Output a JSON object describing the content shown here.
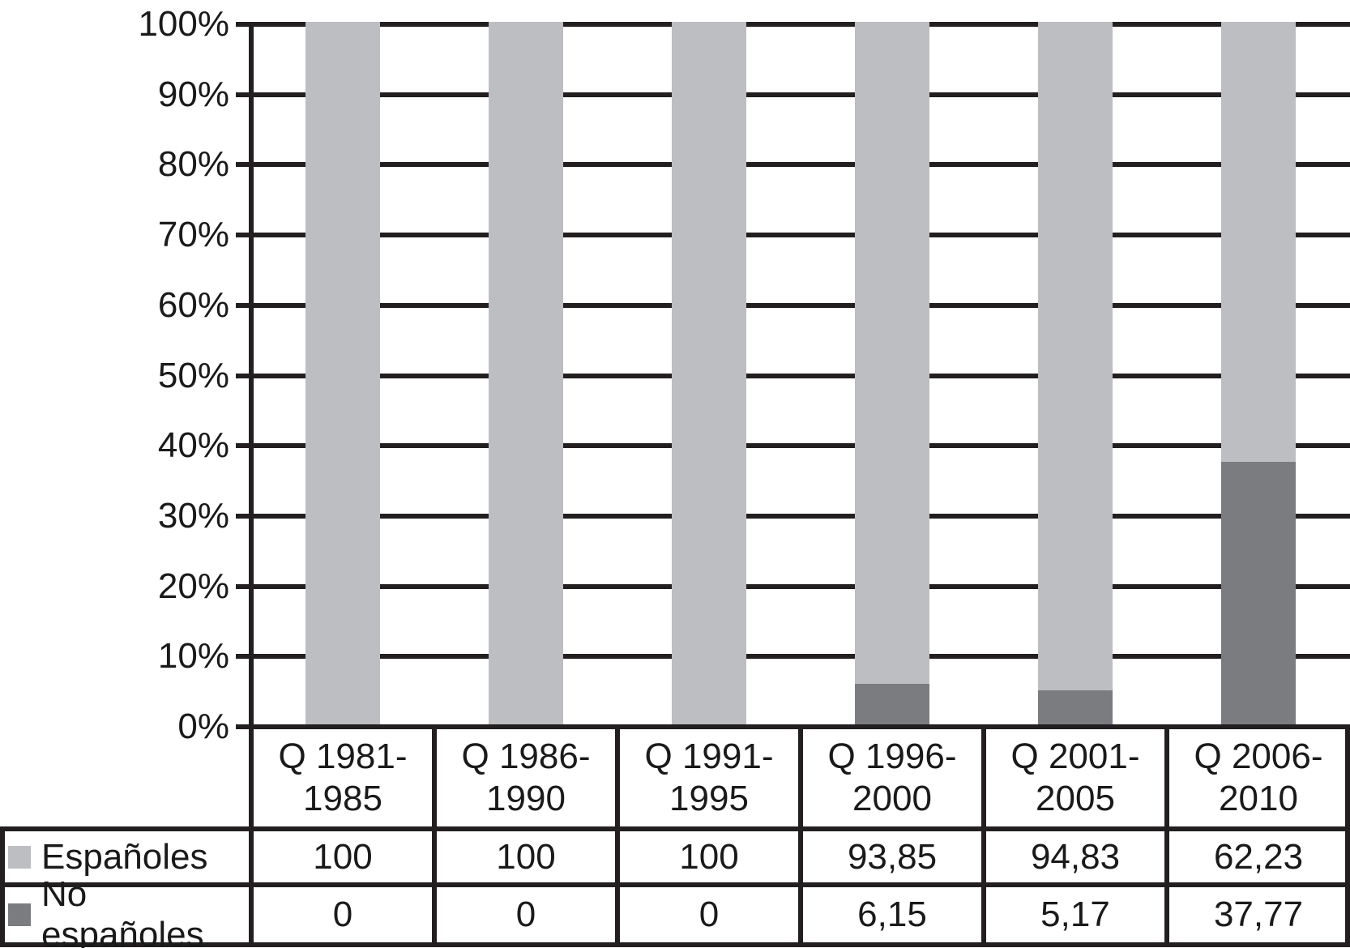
{
  "chart_data": {
    "type": "bar",
    "subtype": "stacked-100-percent-column",
    "title": "",
    "xlabel": "",
    "ylabel": "",
    "categories": [
      "Q 1981-\n1985",
      "Q 1986-\n1990",
      "Q 1991-\n1995",
      "Q 1996-\n2000",
      "Q 2001-\n2005",
      "Q 2006-\n2010"
    ],
    "series": [
      {
        "name": "Españoles",
        "values": [
          100,
          100,
          100,
          93.85,
          94.83,
          62.23
        ],
        "display_values": [
          "100",
          "100",
          "100",
          "93,85",
          "94,83",
          "62,23"
        ],
        "color": "#bdbec2"
      },
      {
        "name": "No españoles",
        "values": [
          0,
          0,
          0,
          6.15,
          5.17,
          37.77
        ],
        "display_values": [
          "0",
          "0",
          "0",
          "6,15",
          "5,17",
          "37,77"
        ],
        "color": "#7b7c80"
      }
    ],
    "y_axis": {
      "ticks": [
        "0%",
        "10%",
        "20%",
        "30%",
        "40%",
        "50%",
        "60%",
        "70%",
        "80%",
        "90%",
        "100%"
      ],
      "min": 0,
      "max": 100,
      "grid": true
    },
    "legend_position": "table-rows-left",
    "line_color": "#231f20"
  }
}
